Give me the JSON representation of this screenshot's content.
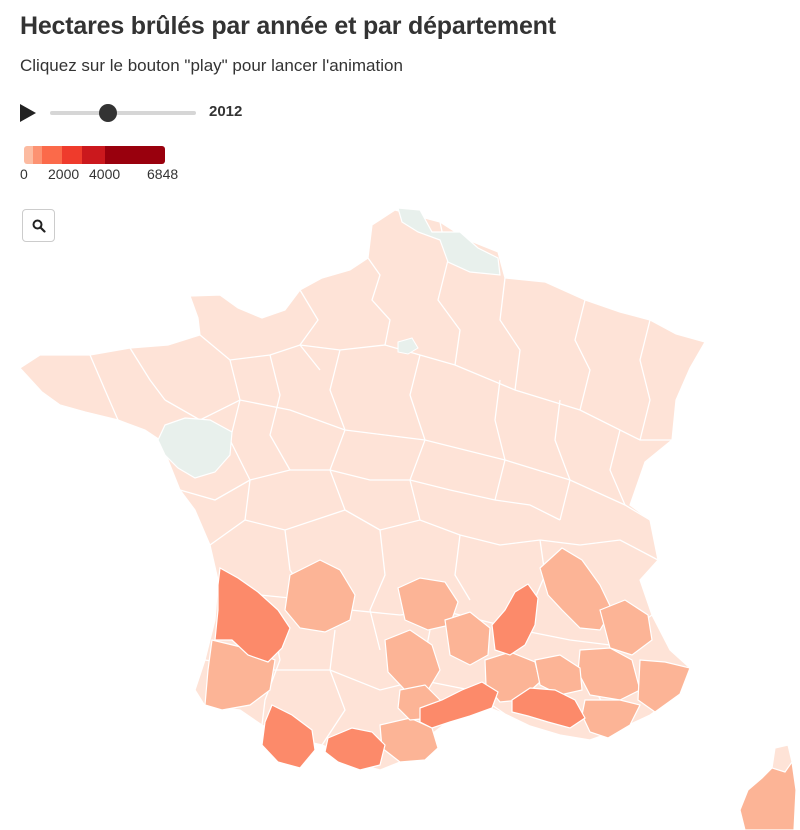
{
  "header": {
    "title": "Hectares brûlés par année et par département",
    "subtitle": "Cliquez sur le bouton \"play\" pour lancer l'animation"
  },
  "controls": {
    "play_icon": "play-icon",
    "year": "2012",
    "slider_position": 0.4
  },
  "legend": {
    "ticks": [
      "0",
      "2000",
      "4000",
      "6848"
    ],
    "colors": [
      "#fcbba1",
      "#fc9272",
      "#fb6a4a",
      "#ef3b2c",
      "#cb181d",
      "#99000d"
    ]
  },
  "zoom": {
    "icon": "magnifier-icon"
  },
  "colors": {
    "no_data": "#e8f0ec",
    "low": "#fee3d7",
    "light": "#fcb496",
    "medium": "#fc8a6a",
    "border": "#ffffff"
  }
}
